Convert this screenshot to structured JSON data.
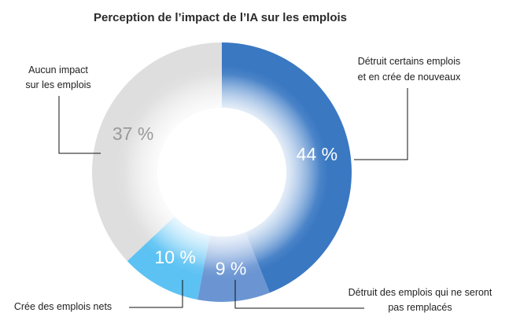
{
  "chart_data": {
    "type": "pie",
    "title": "Perception de l’impact de l’IA sur les emplois",
    "slices": [
      {
        "value": 44,
        "value_label": "44 %",
        "label_lines": [
          "Détruit certains emplois",
          "et en crée de nouveaux"
        ],
        "color": "#3a78c2",
        "color_light": "#9bbde6",
        "label_color": "#ffffff"
      },
      {
        "value": 9,
        "value_label": "9 %",
        "label_lines": [
          "Détruit des emplois qui ne seront",
          "pas remplacés"
        ],
        "color": "#6a95d2",
        "color_light": "#b4cbee",
        "label_color": "#ffffff"
      },
      {
        "value": 10,
        "value_label": "10 %",
        "label_lines": [
          "Crée des emplois nets"
        ],
        "color": "#5cc2f3",
        "color_light": "#aee2fb",
        "label_color": "#ffffff"
      },
      {
        "value": 37,
        "value_label": "37 %",
        "label_lines": [
          "Aucun impact",
          "sur les emplois"
        ],
        "color": "#dedede",
        "color_light": "#f0f0f0",
        "label_color": "#999999"
      }
    ]
  }
}
